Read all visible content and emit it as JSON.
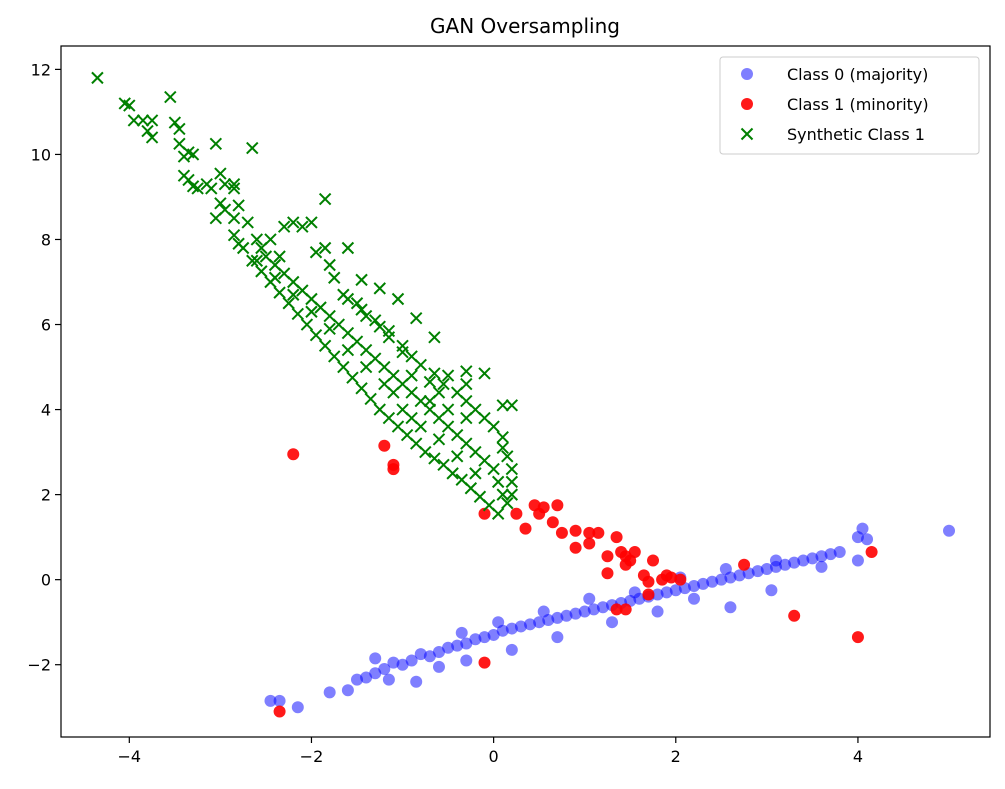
{
  "chart_data": {
    "type": "scatter",
    "title": "GAN Oversampling",
    "xlabel": "",
    "ylabel": "",
    "xlim": [
      -4.75,
      5.45
    ],
    "ylim": [
      -3.7,
      12.55
    ],
    "x_ticks": [
      -4,
      -2,
      0,
      2,
      4
    ],
    "y_ticks": [
      -2,
      0,
      2,
      4,
      6,
      8,
      10,
      12
    ],
    "grid": false,
    "legend_position": "top-right",
    "series": [
      {
        "name": "Class 0 (majority)",
        "marker": "circle",
        "color": "#0000ff",
        "opacity": 0.5,
        "points": [
          [
            -2.45,
            -2.85
          ],
          [
            -2.35,
            -2.85
          ],
          [
            -2.15,
            -3.0
          ],
          [
            -1.8,
            -2.65
          ],
          [
            -1.6,
            -2.6
          ],
          [
            -1.5,
            -2.35
          ],
          [
            -1.4,
            -2.3
          ],
          [
            -1.3,
            -2.2
          ],
          [
            -1.2,
            -2.1
          ],
          [
            -1.1,
            -1.95
          ],
          [
            -1.0,
            -2.0
          ],
          [
            -0.9,
            -1.9
          ],
          [
            -0.85,
            -2.4
          ],
          [
            -0.8,
            -1.75
          ],
          [
            -0.7,
            -1.8
          ],
          [
            -0.6,
            -1.7
          ],
          [
            -0.5,
            -1.6
          ],
          [
            -0.4,
            -1.55
          ],
          [
            -0.3,
            -1.5
          ],
          [
            -0.2,
            -1.4
          ],
          [
            -0.1,
            -1.35
          ],
          [
            0.0,
            -1.3
          ],
          [
            0.1,
            -1.2
          ],
          [
            0.2,
            -1.15
          ],
          [
            0.3,
            -1.1
          ],
          [
            0.4,
            -1.05
          ],
          [
            0.5,
            -1.0
          ],
          [
            0.6,
            -0.95
          ],
          [
            0.7,
            -0.9
          ],
          [
            0.8,
            -0.85
          ],
          [
            0.9,
            -0.8
          ],
          [
            1.0,
            -0.75
          ],
          [
            1.1,
            -0.7
          ],
          [
            1.2,
            -0.65
          ],
          [
            1.3,
            -0.6
          ],
          [
            1.4,
            -0.55
          ],
          [
            1.5,
            -0.5
          ],
          [
            1.6,
            -0.45
          ],
          [
            1.7,
            -0.4
          ],
          [
            1.8,
            -0.35
          ],
          [
            1.9,
            -0.3
          ],
          [
            2.0,
            -0.25
          ],
          [
            2.1,
            -0.2
          ],
          [
            2.2,
            -0.15
          ],
          [
            2.3,
            -0.1
          ],
          [
            2.4,
            -0.05
          ],
          [
            2.5,
            0.0
          ],
          [
            2.6,
            0.05
          ],
          [
            2.7,
            0.1
          ],
          [
            2.8,
            0.15
          ],
          [
            2.9,
            0.2
          ],
          [
            3.0,
            0.25
          ],
          [
            3.1,
            0.3
          ],
          [
            3.2,
            0.35
          ],
          [
            3.3,
            0.4
          ],
          [
            3.4,
            0.45
          ],
          [
            3.5,
            0.5
          ],
          [
            3.6,
            0.55
          ],
          [
            3.7,
            0.6
          ],
          [
            3.8,
            0.65
          ],
          [
            4.0,
            1.0
          ],
          [
            4.05,
            1.2
          ],
          [
            4.1,
            0.95
          ],
          [
            4.0,
            0.45
          ],
          [
            5.0,
            1.15
          ],
          [
            3.05,
            -0.25
          ],
          [
            2.6,
            -0.65
          ],
          [
            2.2,
            -0.45
          ],
          [
            1.8,
            -0.75
          ],
          [
            1.3,
            -1.0
          ],
          [
            0.7,
            -1.35
          ],
          [
            0.2,
            -1.65
          ],
          [
            -0.3,
            -1.9
          ],
          [
            -0.6,
            -2.05
          ],
          [
            -1.15,
            -2.35
          ],
          [
            -0.35,
            -1.25
          ],
          [
            0.05,
            -1.0
          ],
          [
            0.55,
            -0.75
          ],
          [
            1.05,
            -0.45
          ],
          [
            1.55,
            -0.3
          ],
          [
            2.05,
            0.05
          ],
          [
            2.55,
            0.25
          ],
          [
            3.1,
            0.45
          ],
          [
            3.6,
            0.3
          ],
          [
            -1.3,
            -1.85
          ]
        ]
      },
      {
        "name": "Class 1 (minority)",
        "marker": "circle",
        "color": "#ff0000",
        "opacity": 0.9,
        "points": [
          [
            -2.2,
            2.95
          ],
          [
            -1.2,
            3.15
          ],
          [
            -1.1,
            2.7
          ],
          [
            -1.1,
            2.6
          ],
          [
            -0.1,
            1.55
          ],
          [
            0.25,
            1.55
          ],
          [
            0.35,
            1.2
          ],
          [
            0.45,
            1.75
          ],
          [
            0.5,
            1.55
          ],
          [
            0.55,
            1.7
          ],
          [
            0.65,
            1.35
          ],
          [
            0.7,
            1.75
          ],
          [
            0.75,
            1.1
          ],
          [
            0.9,
            1.15
          ],
          [
            0.9,
            0.75
          ],
          [
            1.05,
            1.1
          ],
          [
            1.05,
            0.85
          ],
          [
            1.15,
            1.1
          ],
          [
            1.25,
            0.55
          ],
          [
            1.35,
            1.0
          ],
          [
            1.4,
            0.65
          ],
          [
            1.45,
            0.55
          ],
          [
            1.5,
            0.45
          ],
          [
            1.45,
            0.35
          ],
          [
            1.55,
            0.65
          ],
          [
            1.25,
            0.15
          ],
          [
            1.65,
            0.1
          ],
          [
            1.7,
            -0.05
          ],
          [
            1.75,
            0.45
          ],
          [
            1.85,
            0.0
          ],
          [
            1.9,
            0.1
          ],
          [
            1.95,
            0.05
          ],
          [
            2.05,
            0.0
          ],
          [
            1.35,
            -0.7
          ],
          [
            1.45,
            -0.7
          ],
          [
            1.7,
            -0.35
          ],
          [
            2.75,
            0.35
          ],
          [
            3.3,
            -0.85
          ],
          [
            4.0,
            -1.35
          ],
          [
            4.15,
            0.65
          ],
          [
            -0.1,
            -1.95
          ],
          [
            -2.35,
            -3.1
          ]
        ]
      },
      {
        "name": "Synthetic Class 1",
        "marker": "x",
        "color": "#008000",
        "opacity": 1.0,
        "points": [
          [
            -4.35,
            11.8
          ],
          [
            -4.05,
            11.2
          ],
          [
            -4.0,
            11.15
          ],
          [
            -3.95,
            10.8
          ],
          [
            -3.85,
            10.8
          ],
          [
            -3.75,
            10.8
          ],
          [
            -3.8,
            10.55
          ],
          [
            -3.75,
            10.4
          ],
          [
            -3.55,
            11.35
          ],
          [
            -3.5,
            10.75
          ],
          [
            -3.45,
            10.6
          ],
          [
            -3.45,
            10.25
          ],
          [
            -3.4,
            9.95
          ],
          [
            -3.35,
            10.05
          ],
          [
            -3.3,
            10.0
          ],
          [
            -3.4,
            9.5
          ],
          [
            -3.35,
            9.4
          ],
          [
            -3.3,
            9.25
          ],
          [
            -3.25,
            9.2
          ],
          [
            -3.15,
            9.3
          ],
          [
            -3.1,
            9.2
          ],
          [
            -3.05,
            10.25
          ],
          [
            -3.0,
            9.55
          ],
          [
            -2.95,
            9.3
          ],
          [
            -2.85,
            9.3
          ],
          [
            -2.85,
            9.2
          ],
          [
            -2.65,
            10.15
          ],
          [
            -3.0,
            8.85
          ],
          [
            -2.95,
            8.7
          ],
          [
            -2.85,
            8.5
          ],
          [
            -2.8,
            8.8
          ],
          [
            -2.7,
            8.4
          ],
          [
            -2.6,
            8.0
          ],
          [
            -2.55,
            7.8
          ],
          [
            -2.5,
            7.6
          ],
          [
            -2.4,
            7.4
          ],
          [
            -2.3,
            7.2
          ],
          [
            -2.2,
            7.0
          ],
          [
            -2.1,
            6.8
          ],
          [
            -2.0,
            6.6
          ],
          [
            -1.9,
            6.4
          ],
          [
            -1.8,
            6.2
          ],
          [
            -1.7,
            6.0
          ],
          [
            -1.6,
            5.8
          ],
          [
            -1.5,
            5.6
          ],
          [
            -1.4,
            5.4
          ],
          [
            -1.3,
            5.2
          ],
          [
            -1.2,
            5.0
          ],
          [
            -1.1,
            4.8
          ],
          [
            -1.0,
            4.6
          ],
          [
            -0.9,
            4.4
          ],
          [
            -0.8,
            4.2
          ],
          [
            -0.7,
            4.0
          ],
          [
            -0.6,
            3.8
          ],
          [
            -0.5,
            3.6
          ],
          [
            -0.4,
            3.4
          ],
          [
            -0.3,
            3.2
          ],
          [
            -0.2,
            3.0
          ],
          [
            -0.1,
            2.8
          ],
          [
            0.0,
            2.6
          ],
          [
            0.05,
            2.3
          ],
          [
            0.1,
            2.0
          ],
          [
            0.15,
            1.8
          ],
          [
            0.05,
            1.55
          ],
          [
            -0.05,
            1.75
          ],
          [
            -0.15,
            1.95
          ],
          [
            -0.25,
            2.15
          ],
          [
            -0.35,
            2.35
          ],
          [
            -0.45,
            2.5
          ],
          [
            -0.55,
            2.7
          ],
          [
            -0.65,
            2.85
          ],
          [
            -0.75,
            3.0
          ],
          [
            -0.85,
            3.2
          ],
          [
            -0.95,
            3.4
          ],
          [
            -1.05,
            3.6
          ],
          [
            -1.15,
            3.8
          ],
          [
            -1.25,
            4.0
          ],
          [
            -1.35,
            4.25
          ],
          [
            -1.45,
            4.5
          ],
          [
            -1.55,
            4.75
          ],
          [
            -1.65,
            5.0
          ],
          [
            -1.75,
            5.25
          ],
          [
            -1.85,
            5.5
          ],
          [
            -1.95,
            5.75
          ],
          [
            -2.05,
            6.0
          ],
          [
            -2.15,
            6.25
          ],
          [
            -2.25,
            6.5
          ],
          [
            -2.35,
            6.75
          ],
          [
            -2.45,
            7.0
          ],
          [
            -2.55,
            7.25
          ],
          [
            -2.65,
            7.5
          ],
          [
            -2.75,
            7.8
          ],
          [
            -2.85,
            8.1
          ],
          [
            -2.1,
            8.3
          ],
          [
            -2.0,
            8.4
          ],
          [
            -1.95,
            7.7
          ],
          [
            -1.8,
            7.4
          ],
          [
            -1.75,
            7.1
          ],
          [
            -1.65,
            6.7
          ],
          [
            -1.5,
            6.5
          ],
          [
            -1.4,
            6.2
          ],
          [
            -1.25,
            5.95
          ],
          [
            -1.15,
            5.7
          ],
          [
            -1.0,
            5.5
          ],
          [
            -0.9,
            5.25
          ],
          [
            -0.8,
            5.05
          ],
          [
            -0.65,
            4.85
          ],
          [
            -0.55,
            4.6
          ],
          [
            -0.4,
            4.4
          ],
          [
            -0.3,
            4.2
          ],
          [
            -0.2,
            4.0
          ],
          [
            -0.1,
            3.8
          ],
          [
            0.0,
            3.6
          ],
          [
            0.1,
            3.35
          ],
          [
            0.1,
            3.1
          ],
          [
            0.15,
            2.9
          ],
          [
            0.2,
            2.6
          ],
          [
            0.2,
            2.3
          ],
          [
            0.2,
            2.0
          ],
          [
            0.1,
            4.1
          ],
          [
            0.2,
            4.1
          ],
          [
            -0.1,
            4.85
          ],
          [
            -0.3,
            4.6
          ],
          [
            -0.3,
            4.9
          ],
          [
            -0.5,
            4.8
          ],
          [
            -0.6,
            4.4
          ],
          [
            -0.7,
            4.65
          ],
          [
            -0.9,
            4.8
          ],
          [
            -1.0,
            5.35
          ],
          [
            -1.15,
            5.85
          ],
          [
            -1.3,
            6.1
          ],
          [
            -1.45,
            6.35
          ],
          [
            -1.6,
            6.6
          ],
          [
            -1.85,
            7.8
          ],
          [
            -1.6,
            7.8
          ],
          [
            -1.85,
            8.95
          ],
          [
            -2.2,
            8.4
          ],
          [
            -2.3,
            8.3
          ],
          [
            -2.35,
            7.6
          ],
          [
            -2.45,
            8.0
          ],
          [
            -0.65,
            5.7
          ],
          [
            -0.85,
            6.15
          ],
          [
            -1.05,
            6.6
          ],
          [
            -1.25,
            6.85
          ],
          [
            -1.45,
            7.05
          ],
          [
            -0.3,
            3.8
          ],
          [
            -0.5,
            4.0
          ],
          [
            -0.7,
            4.2
          ],
          [
            -0.9,
            3.8
          ],
          [
            -1.1,
            4.4
          ],
          [
            -0.2,
            2.5
          ],
          [
            -0.4,
            2.9
          ],
          [
            -0.6,
            3.3
          ],
          [
            -0.8,
            3.6
          ],
          [
            -1.0,
            4.0
          ],
          [
            -1.2,
            4.6
          ],
          [
            -1.4,
            5.0
          ],
          [
            -1.6,
            5.4
          ],
          [
            -1.8,
            5.9
          ],
          [
            -2.0,
            6.3
          ],
          [
            -2.2,
            6.7
          ],
          [
            -2.4,
            7.1
          ],
          [
            -2.6,
            7.5
          ],
          [
            -2.8,
            7.9
          ],
          [
            -3.05,
            8.5
          ]
        ]
      }
    ]
  }
}
